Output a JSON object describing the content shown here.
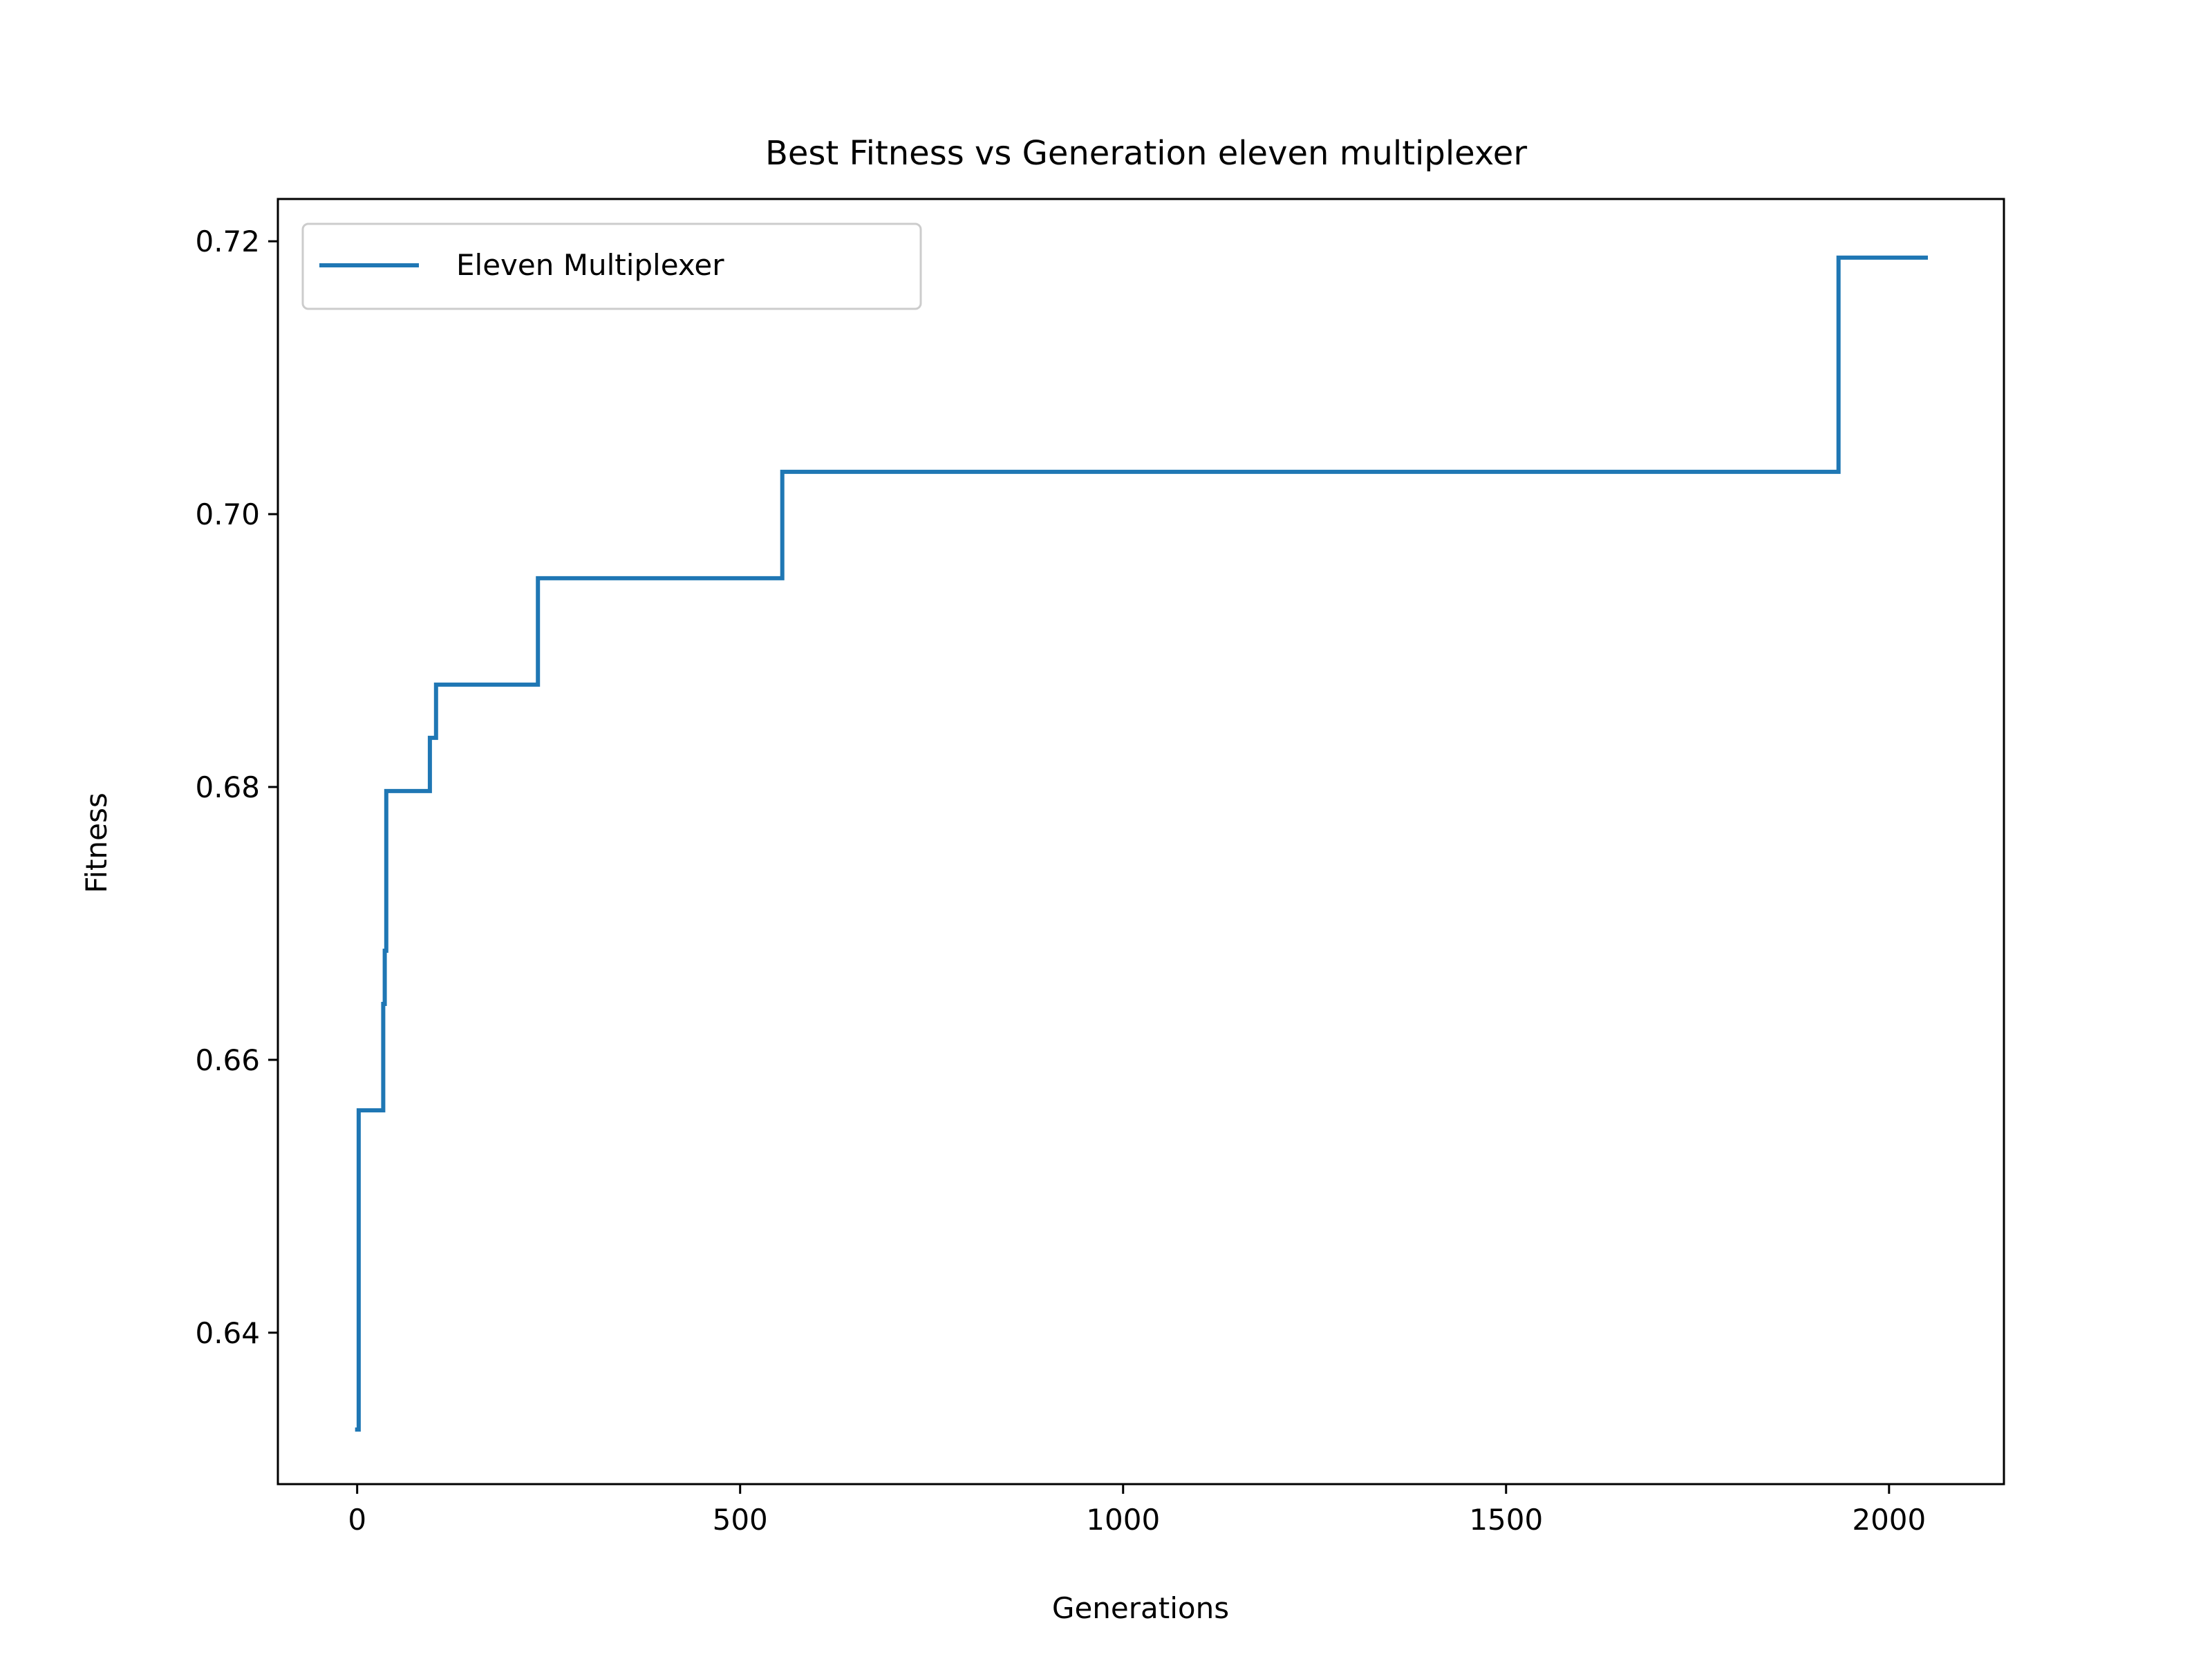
{
  "chart_data": {
    "type": "line",
    "title": "Best Fitness vs  Generation eleven multiplexer",
    "xlabel": "Generations",
    "ylabel": "Fitness",
    "xlim": [
      -103.5,
      2150
    ],
    "ylim": [
      0.6289,
      0.7231
    ],
    "xticks": [
      0,
      500,
      1000,
      1500,
      2000
    ],
    "xtick_labels": [
      "0",
      "500",
      "1000",
      "1500",
      "2000"
    ],
    "yticks": [
      0.64,
      0.66,
      0.68,
      0.7,
      0.72
    ],
    "ytick_labels": [
      "0.64",
      "0.66",
      "0.68",
      "0.70",
      "0.72"
    ],
    "grid": false,
    "legend": {
      "position": "upper-left",
      "entries": [
        "Eleven Multiplexer"
      ]
    },
    "series": [
      {
        "name": "Eleven Multiplexer",
        "color": "#1f77b4",
        "x": [
          0,
          1,
          2,
          2,
          3,
          33,
          34,
          34,
          35,
          36,
          36,
          37,
          38,
          38,
          94,
          95,
          95,
          98,
          99,
          99,
          102,
          103,
          103,
          235,
          236,
          236,
          554,
          555,
          555,
          1933,
          1934,
          1934,
          2048
        ],
        "y": [
          0.6329,
          0.6329,
          0.6329,
          0.6563,
          0.6563,
          0.6563,
          0.6563,
          0.6641,
          0.6641,
          0.6641,
          0.668,
          0.668,
          0.668,
          0.6797,
          0.6797,
          0.6797,
          0.6836,
          0.6836,
          0.6836,
          0.6836,
          0.6836,
          0.6836,
          0.6875,
          0.6875,
          0.6875,
          0.6953,
          0.6953,
          0.6953,
          0.7031,
          0.7031,
          0.7031,
          0.7188,
          0.7188
        ]
      }
    ]
  }
}
